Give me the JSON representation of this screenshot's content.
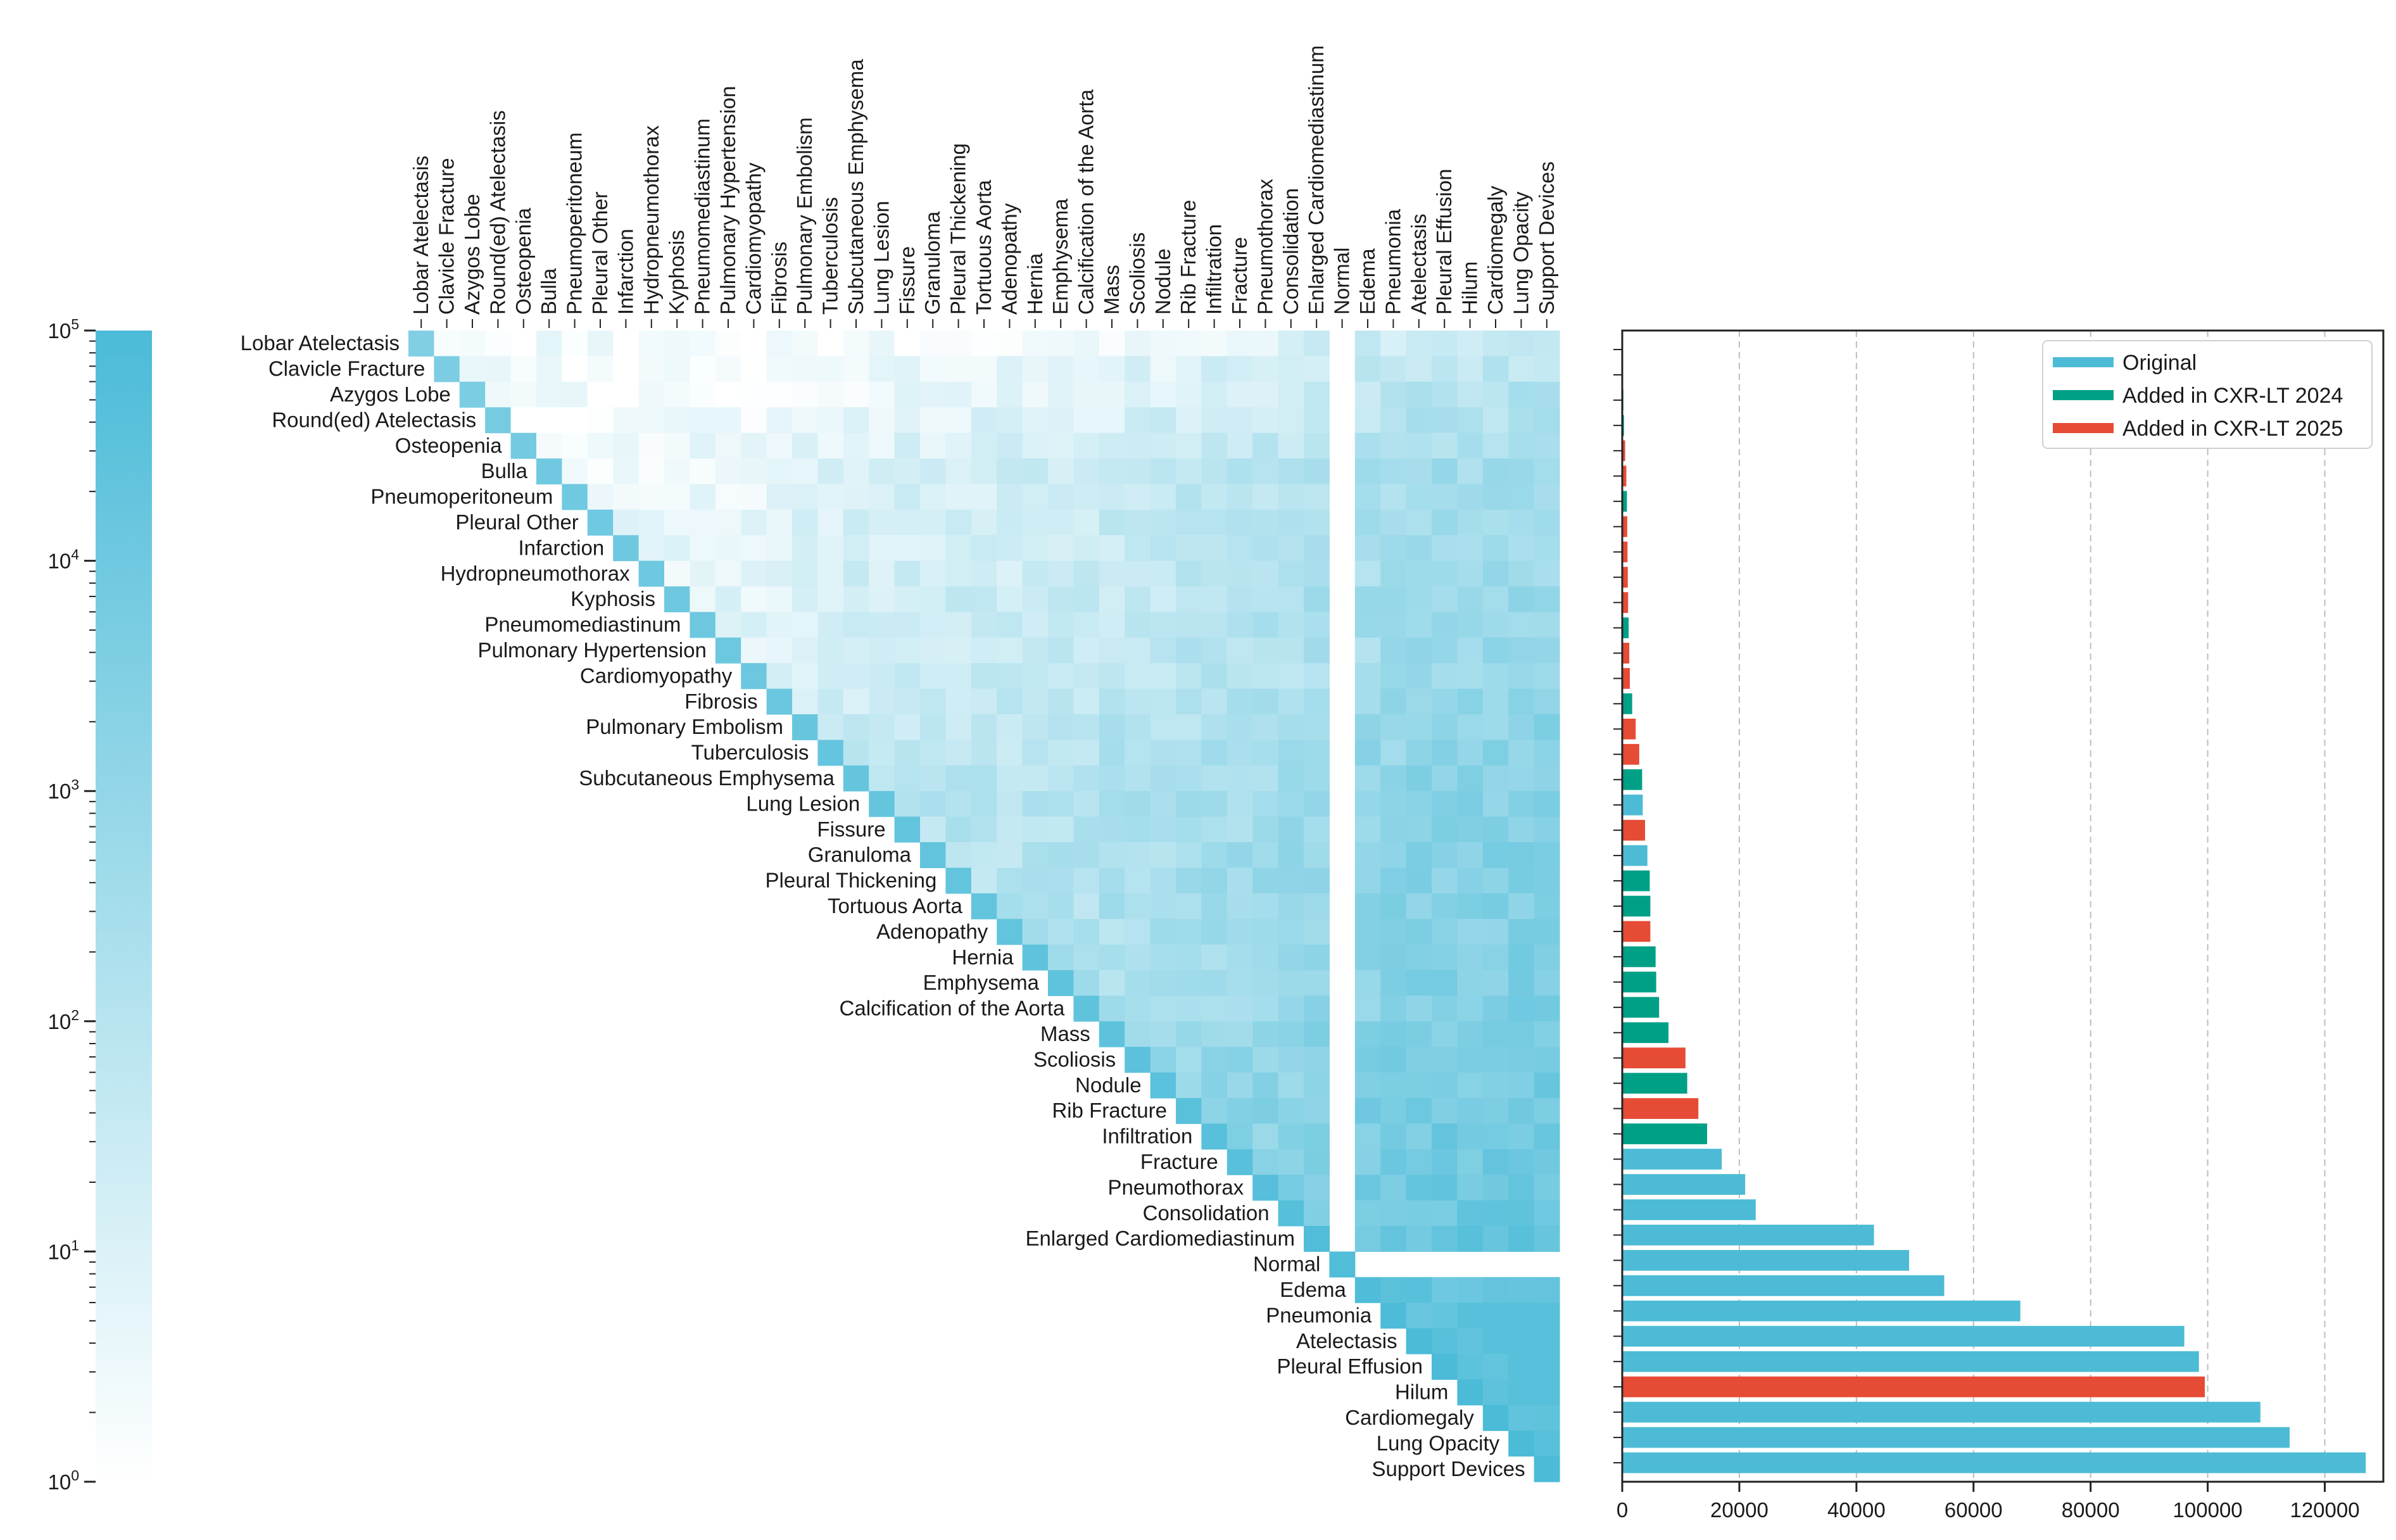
{
  "chart_data": [
    {
      "type": "heatmap",
      "title": "",
      "labels": [
        "Lobar Atelectasis",
        "Clavicle Fracture",
        "Azygos Lobe",
        "Round(ed) Atelectasis",
        "Osteopenia",
        "Bulla",
        "Pneumoperitoneum",
        "Pleural Other",
        "Infarction",
        "Hydropneumothorax",
        "Kyphosis",
        "Pneumomediastinum",
        "Pulmonary Hypertension",
        "Cardiomyopathy",
        "Fibrosis",
        "Pulmonary Embolism",
        "Tuberculosis",
        "Subcutaneous Emphysema",
        "Lung Lesion",
        "Fissure",
        "Granuloma",
        "Pleural Thickening",
        "Tortuous Aorta",
        "Adenopathy",
        "Hernia",
        "Emphysema",
        "Calcification of the Aorta",
        "Mass",
        "Scoliosis",
        "Nodule",
        "Rib Fracture",
        "Infiltration",
        "Fracture",
        "Pneumothorax",
        "Consolidation",
        "Enlarged Cardiomediastinum",
        "Normal",
        "Edema",
        "Pneumonia",
        "Atelectasis",
        "Pleural Effusion",
        "Hilum",
        "Cardiomegaly",
        "Lung Opacity",
        "Support Devices"
      ],
      "layout": "upper triangle including diagonal; cell value = co-occurrence count between row label and column label",
      "zero_row_col": "Normal",
      "colorbar": {
        "scale": "log",
        "min": 1,
        "max": 100000,
        "ticks": [
          "10^0",
          "10^1",
          "10^2",
          "10^3",
          "10^4",
          "10^5"
        ],
        "color_low": "#ffffff",
        "color_high": "#4bbbd8"
      }
    },
    {
      "type": "bar",
      "orientation": "horizontal",
      "title": "",
      "xlabel": "",
      "ylabel": "",
      "xlim": [
        0,
        130000
      ],
      "xticks": [
        0,
        20000,
        40000,
        60000,
        80000,
        100000,
        120000
      ],
      "grid": "x dashed",
      "legend": {
        "placement": "top-right",
        "entries": [
          {
            "name": "Original",
            "color": "#4dbbd5"
          },
          {
            "name": "Added in CXR-LT 2024",
            "color": "#00a087"
          },
          {
            "name": "Added in CXR-LT 2025",
            "color": "#e64b35"
          }
        ]
      },
      "categories": [
        "Lobar Atelectasis",
        "Clavicle Fracture",
        "Azygos Lobe",
        "Round(ed) Atelectasis",
        "Osteopenia",
        "Bulla",
        "Pneumoperitoneum",
        "Pleural Other",
        "Infarction",
        "Hydropneumothorax",
        "Kyphosis",
        "Pneumomediastinum",
        "Pulmonary Hypertension",
        "Cardiomyopathy",
        "Fibrosis",
        "Pulmonary Embolism",
        "Tuberculosis",
        "Subcutaneous Emphysema",
        "Lung Lesion",
        "Fissure",
        "Granuloma",
        "Pleural Thickening",
        "Tortuous Aorta",
        "Adenopathy",
        "Hernia",
        "Emphysema",
        "Calcification of the Aorta",
        "Mass",
        "Scoliosis",
        "Nodule",
        "Rib Fracture",
        "Infiltration",
        "Fracture",
        "Pneumothorax",
        "Consolidation",
        "Enlarged Cardiomediastinum",
        "Normal",
        "Edema",
        "Pneumonia",
        "Atelectasis",
        "Pleural Effusion",
        "Hilum",
        "Cardiomegaly",
        "Lung Opacity",
        "Support Devices"
      ],
      "values": [
        80,
        150,
        200,
        300,
        500,
        700,
        800,
        850,
        900,
        950,
        1000,
        1100,
        1200,
        1300,
        1700,
        2300,
        2900,
        3400,
        3500,
        3900,
        4300,
        4700,
        4800,
        4800,
        5700,
        5800,
        6300,
        7900,
        10800,
        11100,
        13000,
        14500,
        17000,
        21000,
        22800,
        43000,
        49000,
        55000,
        68000,
        96000,
        98500,
        99500,
        109000,
        114000,
        127000
      ],
      "groups": [
        "CXR-LT 2025",
        "CXR-LT 2024",
        "CXR-LT 2024",
        "CXR-LT 2024",
        "CXR-LT 2025",
        "CXR-LT 2025",
        "CXR-LT 2024",
        "CXR-LT 2025",
        "CXR-LT 2025",
        "CXR-LT 2025",
        "CXR-LT 2025",
        "CXR-LT 2024",
        "CXR-LT 2025",
        "CXR-LT 2025",
        "CXR-LT 2024",
        "CXR-LT 2025",
        "CXR-LT 2025",
        "CXR-LT 2024",
        "Original",
        "CXR-LT 2025",
        "Original",
        "CXR-LT 2024",
        "CXR-LT 2024",
        "CXR-LT 2025",
        "CXR-LT 2024",
        "CXR-LT 2024",
        "CXR-LT 2024",
        "CXR-LT 2024",
        "CXR-LT 2025",
        "CXR-LT 2024",
        "CXR-LT 2025",
        "CXR-LT 2024",
        "Original",
        "Original",
        "Original",
        "Original",
        "Original",
        "Original",
        "Original",
        "Original",
        "Original",
        "CXR-LT 2025",
        "Original",
        "Original",
        "Original"
      ]
    }
  ]
}
